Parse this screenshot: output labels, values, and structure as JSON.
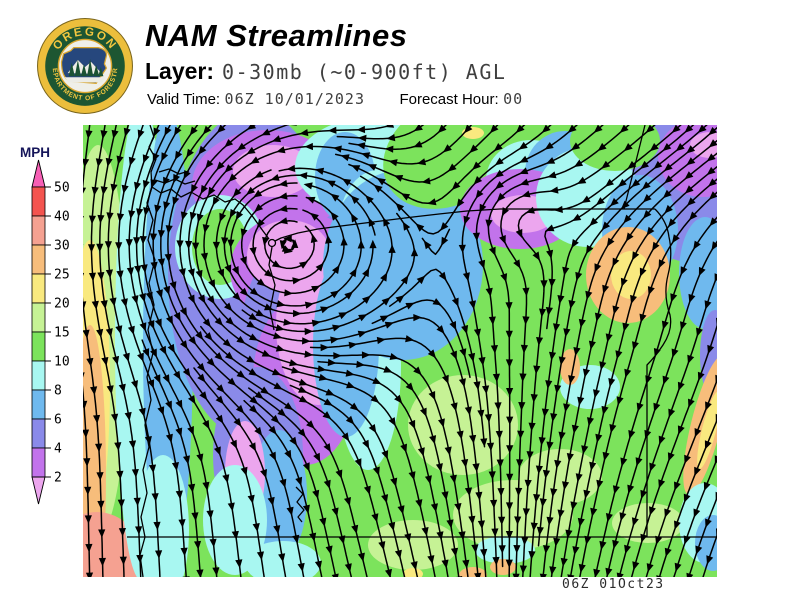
{
  "header": {
    "logo": {
      "ring_top_text": "OREGON",
      "ring_bottom_text": "DEPARTMENT OF FORESTRY",
      "gold": "#ECBE3C",
      "dark_green": "#1D5632",
      "navy": "#26477D"
    },
    "title": "NAM Streamlines",
    "layer_label": "Layer:",
    "layer_value": "0-30mb (~0-900ft) AGL",
    "valid_time_label": "Valid Time:",
    "valid_time_value": "06Z 10/01/2023",
    "forecast_hour_label": "Forecast Hour:",
    "forecast_hour_value": "00"
  },
  "legend": {
    "units_label": "MPH",
    "tick_labels": [
      "50",
      "40",
      "30",
      "25",
      "20",
      "15",
      "10",
      "8",
      "6",
      "4",
      "2"
    ],
    "segment_colors": [
      "#F3544F",
      "#F5A191",
      "#F7BD7B",
      "#F9E97F",
      "#C6F295",
      "#7CE35C",
      "#A8F7F1",
      "#6FB9EE",
      "#8A8AE9",
      "#C273EB"
    ],
    "above_max_color": "#F75FB5",
    "below_min_color": "#ECA6EE"
  },
  "map": {
    "timestamp": "06Z 01Oct23"
  }
}
